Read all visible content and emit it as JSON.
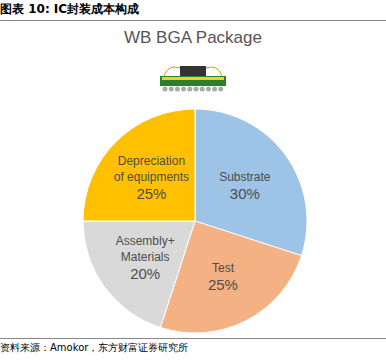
{
  "caption": "图表 10: IC封装成本构成",
  "source": "资料来源：Amokor，东方财富证券研究所",
  "chart_data": {
    "type": "pie",
    "title": "WB BGA Package",
    "categories": [
      "Substrate",
      "Test",
      "Assembly+ Materials",
      "Depreciation of equipments"
    ],
    "values": [
      30,
      25,
      20,
      25
    ],
    "value_labels": [
      "30%",
      "25%",
      "20%",
      "25%"
    ],
    "colors": [
      "#9dc3e6",
      "#f4b183",
      "#d9d9d9",
      "#ffc000"
    ],
    "data_labels": true
  }
}
